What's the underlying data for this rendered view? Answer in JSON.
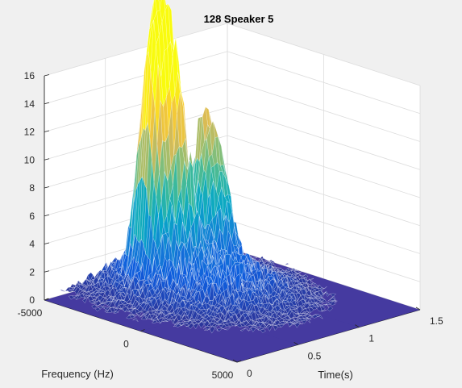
{
  "chart_data": {
    "type": "surface",
    "title": "128 Speaker 5",
    "xlabel": "Time(s)",
    "ylabel": "Frequency (Hz)",
    "zlabel": "",
    "xlim": [
      0,
      1.5
    ],
    "ylim": [
      -5000,
      5000
    ],
    "zlim": [
      0,
      16
    ],
    "x_ticks": [
      "0",
      "0.5",
      "1",
      "1.5"
    ],
    "y_ticks": [
      "-5000",
      "0",
      "5000"
    ],
    "z_ticks": [
      "0",
      "2",
      "4",
      "6",
      "8",
      "10",
      "12",
      "14",
      "16"
    ],
    "grid": true,
    "colormap": "parula",
    "peaks": [
      {
        "time": 0.55,
        "frequency": -3000,
        "magnitude": 14.8
      },
      {
        "time": 0.65,
        "frequency": -3000,
        "magnitude": 14.6
      },
      {
        "time": 0.72,
        "frequency": -2500,
        "magnitude": 8.8
      },
      {
        "time": 0.95,
        "frequency": -2800,
        "magnitude": 8.7
      },
      {
        "time": 1.05,
        "frequency": -2600,
        "magnitude": 7.0
      }
    ],
    "notes_visible_colors": [
      "#352a87",
      "#0f5cdd",
      "#1481d6",
      "#06a7c6",
      "#38b99e",
      "#92bf73",
      "#d9ba56",
      "#fcce2e",
      "#f9fb0e"
    ]
  }
}
